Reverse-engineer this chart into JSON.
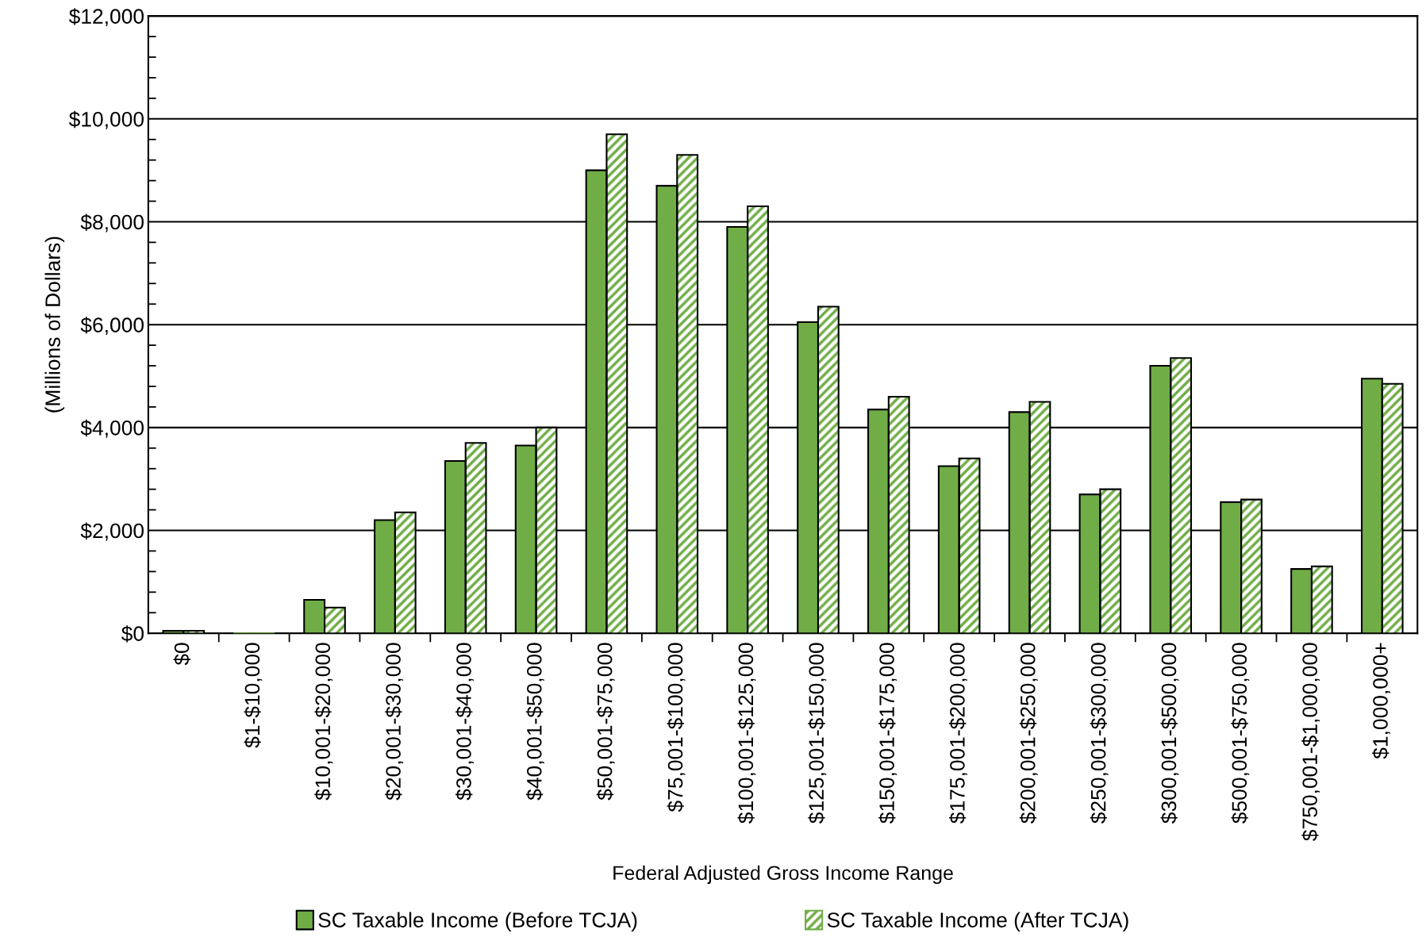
{
  "chart_data": {
    "type": "bar",
    "xlabel": "Federal Adjusted Gross Income Range",
    "ylabel": "(Millions of Dollars)",
    "categories": [
      "$0",
      "$1-$10,000",
      "$10,001-$20,000",
      "$20,001-$30,000",
      "$30,001-$40,000",
      "$40,001-$50,000",
      "$50,001-$75,000",
      "$75,001-$100,000",
      "$100,001-$125,000",
      "$125,001-$150,000",
      "$150,001-$175,000",
      "$175,001-$200,000",
      "$200,001-$250,000",
      "$250,001-$300,000",
      "$300,001-$500,000",
      "$500,001-$750,000",
      "$750,001-$1,000,000",
      "$1,000,000+"
    ],
    "series": [
      {
        "name": "SC Taxable Income (Before TCJA)",
        "color": "#70ad47",
        "values": [
          50,
          0,
          650,
          2200,
          3350,
          3650,
          9000,
          8700,
          7900,
          6050,
          4350,
          3250,
          4300,
          2700,
          5200,
          2550,
          1250,
          4950
        ]
      },
      {
        "name": "SC Taxable Income (After TCJA)",
        "color": "#70ad47",
        "values": [
          50,
          0,
          500,
          2350,
          3700,
          4000,
          9700,
          9300,
          8300,
          6350,
          4600,
          3400,
          4500,
          2800,
          5350,
          2600,
          1300,
          4850
        ]
      }
    ],
    "ylim": [
      0,
      12000
    ],
    "yticks": [
      {
        "value": 0,
        "label": "$0"
      },
      {
        "value": 2000,
        "label": "$2,000"
      },
      {
        "value": 4000,
        "label": "$4,000"
      },
      {
        "value": 6000,
        "label": "$6,000"
      },
      {
        "value": 8000,
        "label": "$8,000"
      },
      {
        "value": 10000,
        "label": "$10,000"
      },
      {
        "value": 12000,
        "label": "$12,000"
      }
    ],
    "grid": "y",
    "legend": "bottom"
  }
}
